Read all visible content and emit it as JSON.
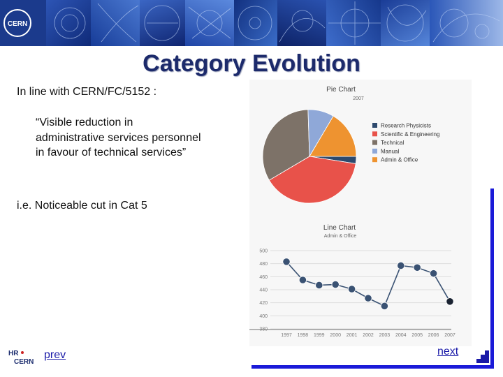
{
  "slide": {
    "title": "Category Evolution",
    "line1": "In line with CERN/FC/5152 :",
    "quote": "“Visible reduction in administrative services personnel in favour of technical services”",
    "line2": "i.e. Noticeable cut in Cat 5",
    "prev_label": "prev",
    "next_label": "next",
    "banner_logo_text": "CERN",
    "hr_logo_text": "HR CERN"
  },
  "chart_data": [
    {
      "type": "pie",
      "title": "Pie Chart",
      "subtitle": "2007",
      "legend_position": "right",
      "slices": [
        {
          "label": "Research Physicists",
          "value": 2.5,
          "color": "#2e4a6e"
        },
        {
          "label": "Scientific & Engineering",
          "value": 39,
          "color": "#e8524a"
        },
        {
          "label": "Technical",
          "value": 33,
          "color": "#7d7268"
        },
        {
          "label": "Manual",
          "value": 9,
          "color": "#8fa8d8"
        },
        {
          "label": "Admin & Office",
          "value": 16.5,
          "color": "#ee9330"
        }
      ]
    },
    {
      "type": "line",
      "title": "Line Chart",
      "subtitle": "Admin & Office",
      "categories": [
        "1997",
        "1998",
        "1999",
        "2000",
        "2001",
        "2002",
        "2003",
        "2004",
        "2005",
        "2006",
        "2007"
      ],
      "values": [
        483,
        455,
        447,
        448,
        441,
        427,
        415,
        477,
        474,
        465,
        422
      ],
      "ylim": [
        380,
        500
      ],
      "yticks": [
        380,
        400,
        420,
        440,
        460,
        480,
        500
      ],
      "grid": true,
      "color": "#3a5273"
    }
  ]
}
